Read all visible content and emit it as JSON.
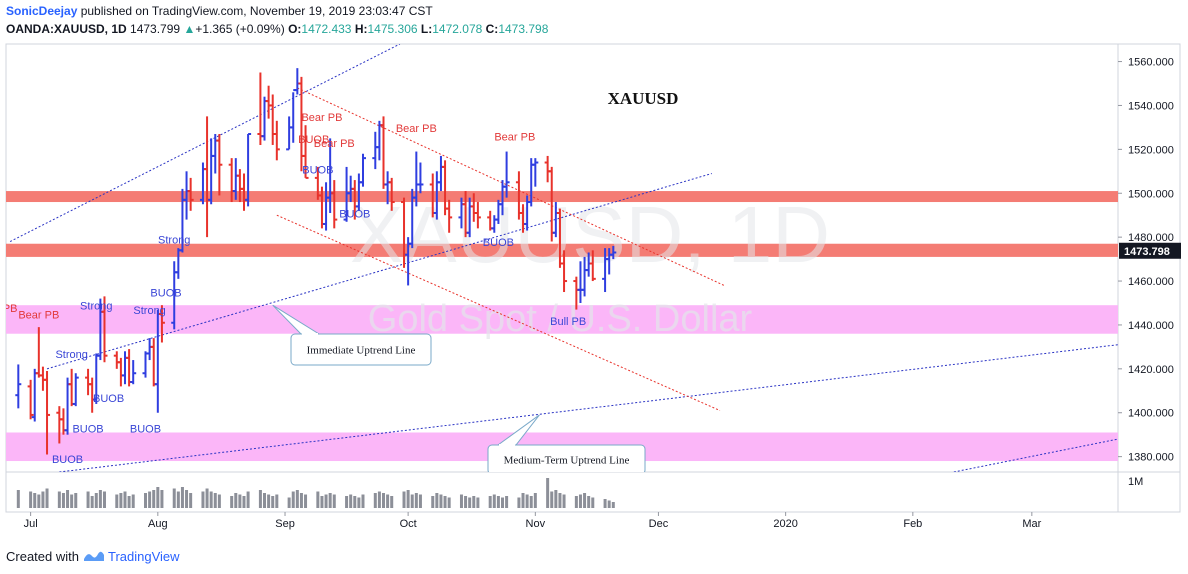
{
  "header": {
    "publisher": "SonicDeejay",
    "published_text": " published on TradingView.com, November 19, 2019 23:03:47 CST",
    "symbol": "OANDA:XAUUSD, 1D",
    "last": "1473.799",
    "change_arrow": "▲",
    "change": "+1.365 (+0.09%)",
    "o_label": "O:",
    "o_value": "1472.433",
    "h_label": "H:",
    "h_value": "1475.306",
    "l_label": "L:",
    "l_value": "1472.078",
    "c_label": "C:",
    "c_value": "1473.798"
  },
  "footer": {
    "created_with": "Created with",
    "brand": "TradingView"
  },
  "colors": {
    "up": "#2f3ee0",
    "down": "#e8322b",
    "resistance": "#f47c74",
    "support": "#fbb6f8",
    "blue_line": "#2a33c4",
    "red_line": "#e8322b",
    "price_label_bg": "#131722"
  },
  "chart_data": {
    "type": "ohlc-bar",
    "title": "XAUUSD",
    "watermark_symbol": "XAUUSD, 1D",
    "watermark_name": "Gold Spot / U.S. Dollar",
    "ylim": [
      1373,
      1568
    ],
    "y_ticks": [
      "1560.000",
      "1540.000",
      "1520.000",
      "1500.000",
      "1480.000",
      "1460.000",
      "1440.000",
      "1420.000",
      "1400.000",
      "1380.000"
    ],
    "y_tick_values": [
      1560,
      1540,
      1520,
      1500,
      1480,
      1460,
      1440,
      1420,
      1400,
      1380
    ],
    "x_ticks": [
      "Jul",
      "Aug",
      "Sep",
      "Oct",
      "Nov",
      "Dec",
      "2020",
      "Feb",
      "Mar"
    ],
    "x_tick_dates": [
      "2019-07-01",
      "2019-08-01",
      "2019-09-01",
      "2019-10-01",
      "2019-11-01",
      "2019-12-01",
      "2020-01-01",
      "2020-02-01",
      "2020-03-01"
    ],
    "last_price_label": "1473.798",
    "volume_label": "1M",
    "zones": [
      {
        "type": "resistance",
        "from": 1496,
        "to": 1501
      },
      {
        "type": "resistance",
        "from": 1471,
        "to": 1477
      },
      {
        "type": "support",
        "from": 1436,
        "to": 1449
      },
      {
        "type": "support",
        "from": 1378,
        "to": 1391
      }
    ],
    "trendlines": [
      {
        "name": "upper-channel",
        "color": "blue",
        "from": [
          "2019-06-26",
          1478
        ],
        "to": [
          "2019-09-29",
          1568
        ]
      },
      {
        "name": "immediate-uptrend",
        "color": "blue",
        "from": [
          "2019-07-05",
          1420
        ],
        "to": [
          "2019-12-14",
          1509
        ]
      },
      {
        "name": "medium-term-uptrend",
        "color": "blue",
        "from": [
          "2019-07-08",
          1373
        ],
        "to": [
          "2020-03-22",
          1431
        ]
      },
      {
        "name": "long-term",
        "color": "blue",
        "from": [
          "2020-02-11",
          1373
        ],
        "to": [
          "2020-03-22",
          1388
        ]
      },
      {
        "name": "descending-top",
        "color": "red",
        "from": [
          "2019-09-04",
          1548
        ],
        "to": [
          "2019-12-17",
          1458
        ]
      },
      {
        "name": "descending-bottom",
        "color": "red",
        "from": [
          "2019-08-30",
          1490
        ],
        "to": [
          "2019-12-16",
          1401
        ]
      }
    ],
    "callouts": [
      {
        "text": "Immediate Uptrend Line",
        "target": [
          "2019-08-29",
          1449
        ]
      },
      {
        "text": "Medium-Term Uptrend Line",
        "target": [
          "2019-11-02",
          1399
        ]
      }
    ],
    "labels": [
      {
        "text": "Bear PB",
        "date": "2019-07-03",
        "price": 1443,
        "color": "red"
      },
      {
        "text": "Strong",
        "date": "2019-07-17",
        "price": 1447,
        "color": "blue"
      },
      {
        "text": "Strong",
        "date": "2019-07-11",
        "price": 1425,
        "color": "blue"
      },
      {
        "text": "Strong",
        "date": "2019-07-30",
        "price": 1445,
        "color": "blue"
      },
      {
        "text": "Strong",
        "date": "2019-08-05",
        "price": 1477,
        "color": "blue"
      },
      {
        "text": "BUOB",
        "date": "2019-07-10",
        "price": 1377,
        "color": "blue"
      },
      {
        "text": "BUOB",
        "date": "2019-07-15",
        "price": 1391,
        "color": "blue"
      },
      {
        "text": "BUOB",
        "date": "2019-07-20",
        "price": 1405,
        "color": "blue"
      },
      {
        "text": "BUOB",
        "date": "2019-07-29",
        "price": 1391,
        "color": "blue"
      },
      {
        "text": "BUOB",
        "date": "2019-08-03",
        "price": 1453,
        "color": "blue"
      },
      {
        "text": "Bear PB",
        "date": "2019-09-10",
        "price": 1533,
        "color": "red"
      },
      {
        "text": "Bear PB",
        "date": "2019-09-13",
        "price": 1521,
        "color": "red"
      },
      {
        "text": "BUOB",
        "date": "2019-09-08",
        "price": 1523,
        "color": "red"
      },
      {
        "text": "BUOB",
        "date": "2019-09-09",
        "price": 1509,
        "color": "blue"
      },
      {
        "text": "BUOB",
        "date": "2019-09-18",
        "price": 1489,
        "color": "blue"
      },
      {
        "text": "Bear PB",
        "date": "2019-10-03",
        "price": 1528,
        "color": "red"
      },
      {
        "text": "Bear PB",
        "date": "2019-10-27",
        "price": 1524,
        "color": "red"
      },
      {
        "text": "BUOB",
        "date": "2019-10-23",
        "price": 1476,
        "color": "blue"
      },
      {
        "text": "Bull PB",
        "date": "2019-11-09",
        "price": 1440,
        "color": "blue"
      },
      {
        "text": "PB",
        "date": "2019-06-26",
        "price": 1446,
        "color": "red"
      }
    ],
    "bars": [
      [
        "2019-06-28",
        1408,
        1422,
        1402,
        1413
      ],
      [
        "2019-07-01",
        1412,
        1415,
        1397,
        1399
      ],
      [
        "2019-07-02",
        1398,
        1420,
        1396,
        1418
      ],
      [
        "2019-07-03",
        1418,
        1439,
        1416,
        1417
      ],
      [
        "2019-07-04",
        1417,
        1421,
        1410,
        1415
      ],
      [
        "2019-07-05",
        1415,
        1419,
        1381,
        1399
      ],
      [
        "2019-07-08",
        1400,
        1403,
        1386,
        1397
      ],
      [
        "2019-07-09",
        1397,
        1402,
        1390,
        1392
      ],
      [
        "2019-07-10",
        1392,
        1416,
        1390,
        1413
      ],
      [
        "2019-07-11",
        1413,
        1420,
        1403,
        1404
      ],
      [
        "2019-07-12",
        1404,
        1418,
        1403,
        1416
      ],
      [
        "2019-07-15",
        1416,
        1420,
        1408,
        1413
      ],
      [
        "2019-07-16",
        1413,
        1416,
        1400,
        1406
      ],
      [
        "2019-07-17",
        1406,
        1427,
        1404,
        1426
      ],
      [
        "2019-07-18",
        1426,
        1452,
        1424,
        1446
      ],
      [
        "2019-07-19",
        1446,
        1453,
        1423,
        1426
      ],
      [
        "2019-07-22",
        1426,
        1428,
        1420,
        1423
      ],
      [
        "2019-07-23",
        1423,
        1425,
        1412,
        1417
      ],
      [
        "2019-07-24",
        1417,
        1428,
        1413,
        1425
      ],
      [
        "2019-07-25",
        1425,
        1429,
        1412,
        1414
      ],
      [
        "2019-07-26",
        1414,
        1424,
        1413,
        1418
      ],
      [
        "2019-07-29",
        1418,
        1428,
        1416,
        1427
      ],
      [
        "2019-07-30",
        1427,
        1434,
        1424,
        1430
      ],
      [
        "2019-07-31",
        1430,
        1434,
        1412,
        1413
      ],
      [
        "2019-08-01",
        1413,
        1447,
        1400,
        1445
      ],
      [
        "2019-08-02",
        1445,
        1449,
        1432,
        1441
      ],
      [
        "2019-08-05",
        1441,
        1469,
        1438,
        1464
      ],
      [
        "2019-08-06",
        1464,
        1475,
        1461,
        1474
      ],
      [
        "2019-08-07",
        1474,
        1502,
        1473,
        1497
      ],
      [
        "2019-08-08",
        1497,
        1510,
        1488,
        1501
      ],
      [
        "2019-08-09",
        1501,
        1507,
        1492,
        1497
      ],
      [
        "2019-08-12",
        1497,
        1514,
        1495,
        1511
      ],
      [
        "2019-08-13",
        1511,
        1535,
        1480,
        1497
      ],
      [
        "2019-08-14",
        1497,
        1525,
        1495,
        1517
      ],
      [
        "2019-08-15",
        1517,
        1527,
        1509,
        1524
      ],
      [
        "2019-08-16",
        1524,
        1527,
        1499,
        1513
      ],
      [
        "2019-08-19",
        1513,
        1516,
        1496,
        1501
      ],
      [
        "2019-08-20",
        1501,
        1516,
        1497,
        1508
      ],
      [
        "2019-08-21",
        1508,
        1511,
        1496,
        1502
      ],
      [
        "2019-08-22",
        1502,
        1509,
        1492,
        1497
      ],
      [
        "2019-08-23",
        1497,
        1527,
        1494,
        1527
      ],
      [
        "2019-08-26",
        1527,
        1555,
        1522,
        1526
      ],
      [
        "2019-08-27",
        1526,
        1544,
        1524,
        1542
      ],
      [
        "2019-08-28",
        1542,
        1549,
        1534,
        1540
      ],
      [
        "2019-08-29",
        1540,
        1545,
        1522,
        1527
      ],
      [
        "2019-08-30",
        1527,
        1533,
        1515,
        1520
      ],
      [
        "2019-09-02",
        1520,
        1535,
        1520,
        1530
      ],
      [
        "2019-09-03",
        1530,
        1546,
        1523,
        1547
      ],
      [
        "2019-09-04",
        1547,
        1557,
        1545,
        1550
      ],
      [
        "2019-09-05",
        1550,
        1553,
        1510,
        1517
      ],
      [
        "2019-09-06",
        1517,
        1531,
        1507,
        1507
      ],
      [
        "2019-09-09",
        1507,
        1512,
        1497,
        1499
      ],
      [
        "2019-09-10",
        1499,
        1503,
        1484,
        1486
      ],
      [
        "2019-09-11",
        1486,
        1505,
        1483,
        1498
      ],
      [
        "2019-09-12",
        1498,
        1525,
        1491,
        1500
      ],
      [
        "2019-09-13",
        1500,
        1506,
        1484,
        1488
      ],
      [
        "2019-09-16",
        1488,
        1512,
        1487,
        1500
      ],
      [
        "2019-09-17",
        1500,
        1508,
        1496,
        1502
      ],
      [
        "2019-09-18",
        1502,
        1506,
        1488,
        1494
      ],
      [
        "2019-09-19",
        1494,
        1509,
        1492,
        1505
      ],
      [
        "2019-09-20",
        1505,
        1518,
        1503,
        1516
      ],
      [
        "2019-09-23",
        1516,
        1528,
        1511,
        1521
      ],
      [
        "2019-09-24",
        1521,
        1533,
        1515,
        1531
      ],
      [
        "2019-09-25",
        1531,
        1535,
        1502,
        1504
      ],
      [
        "2019-09-26",
        1504,
        1510,
        1495,
        1505
      ],
      [
        "2019-09-27",
        1505,
        1507,
        1492,
        1496
      ],
      [
        "2019-09-30",
        1496,
        1498,
        1466,
        1472
      ],
      [
        "2019-10-01",
        1472,
        1480,
        1458,
        1477
      ],
      [
        "2019-10-02",
        1477,
        1502,
        1475,
        1498
      ],
      [
        "2019-10-03",
        1498,
        1519,
        1494,
        1504
      ],
      [
        "2019-10-04",
        1504,
        1514,
        1500,
        1504
      ],
      [
        "2019-10-07",
        1504,
        1509,
        1489,
        1491
      ],
      [
        "2019-10-08",
        1491,
        1510,
        1488,
        1505
      ],
      [
        "2019-10-09",
        1505,
        1517,
        1501,
        1512
      ],
      [
        "2019-10-10",
        1512,
        1515,
        1490,
        1493
      ],
      [
        "2019-10-11",
        1493,
        1497,
        1482,
        1489
      ],
      [
        "2019-10-14",
        1489,
        1498,
        1484,
        1495
      ],
      [
        "2019-10-15",
        1495,
        1501,
        1480,
        1482
      ],
      [
        "2019-10-16",
        1482,
        1498,
        1480,
        1494
      ],
      [
        "2019-10-17",
        1494,
        1500,
        1487,
        1491
      ],
      [
        "2019-10-18",
        1491,
        1496,
        1484,
        1489
      ],
      [
        "2019-10-21",
        1489,
        1492,
        1483,
        1484
      ],
      [
        "2019-10-22",
        1484,
        1490,
        1482,
        1488
      ],
      [
        "2019-10-23",
        1488,
        1497,
        1486,
        1495
      ],
      [
        "2019-10-24",
        1495,
        1506,
        1490,
        1503
      ],
      [
        "2019-10-25",
        1503,
        1519,
        1498,
        1505
      ],
      [
        "2019-10-28",
        1505,
        1510,
        1488,
        1491
      ],
      [
        "2019-10-29",
        1491,
        1495,
        1482,
        1486
      ],
      [
        "2019-10-30",
        1486,
        1499,
        1483,
        1496
      ],
      [
        "2019-10-31",
        1496,
        1516,
        1494,
        1513
      ],
      [
        "2019-11-01",
        1513,
        1516,
        1503,
        1514
      ],
      [
        "2019-11-04",
        1514,
        1517,
        1505,
        1510
      ],
      [
        "2019-11-05",
        1510,
        1512,
        1478,
        1482
      ],
      [
        "2019-11-06",
        1482,
        1496,
        1480,
        1491
      ],
      [
        "2019-11-07",
        1491,
        1493,
        1466,
        1468
      ],
      [
        "2019-11-08",
        1468,
        1474,
        1455,
        1460
      ],
      [
        "2019-11-11",
        1460,
        1462,
        1447,
        1456
      ],
      [
        "2019-11-12",
        1456,
        1469,
        1450,
        1456
      ],
      [
        "2019-11-13",
        1456,
        1471,
        1453,
        1465
      ],
      [
        "2019-11-14",
        1465,
        1473,
        1462,
        1468
      ],
      [
        "2019-11-15",
        1468,
        1474,
        1460,
        1461
      ],
      [
        "2019-11-18",
        1461,
        1475,
        1455,
        1470
      ],
      [
        "2019-11-19",
        1470,
        1475,
        1463,
        1472
      ],
      [
        "2019-11-20",
        1472,
        1476,
        1470,
        1473
      ]
    ],
    "volumes": [
      0.6,
      0.55,
      0.5,
      0.45,
      0.55,
      0.65,
      0.55,
      0.5,
      0.6,
      0.45,
      0.5,
      0.55,
      0.4,
      0.5,
      0.6,
      0.55,
      0.45,
      0.5,
      0.55,
      0.4,
      0.45,
      0.5,
      0.55,
      0.6,
      0.7,
      0.6,
      0.65,
      0.55,
      0.7,
      0.6,
      0.5,
      0.55,
      0.65,
      0.55,
      0.5,
      0.45,
      0.4,
      0.5,
      0.45,
      0.4,
      0.55,
      0.6,
      0.5,
      0.45,
      0.4,
      0.45,
      0.35,
      0.55,
      0.6,
      0.5,
      0.45,
      0.55,
      0.4,
      0.45,
      0.5,
      0.45,
      0.4,
      0.45,
      0.4,
      0.35,
      0.45,
      0.5,
      0.55,
      0.5,
      0.45,
      0.4,
      0.55,
      0.6,
      0.45,
      0.5,
      0.45,
      0.4,
      0.5,
      0.45,
      0.4,
      0.35,
      0.45,
      0.4,
      0.35,
      0.4,
      0.35,
      0.4,
      0.45,
      0.4,
      0.35,
      0.4,
      0.35,
      0.5,
      0.45,
      0.4,
      0.5,
      1.0,
      0.55,
      0.6,
      0.5,
      0.45,
      0.4,
      0.45,
      0.5,
      0.4,
      0.35,
      0.3,
      0.25,
      0.2
    ]
  }
}
